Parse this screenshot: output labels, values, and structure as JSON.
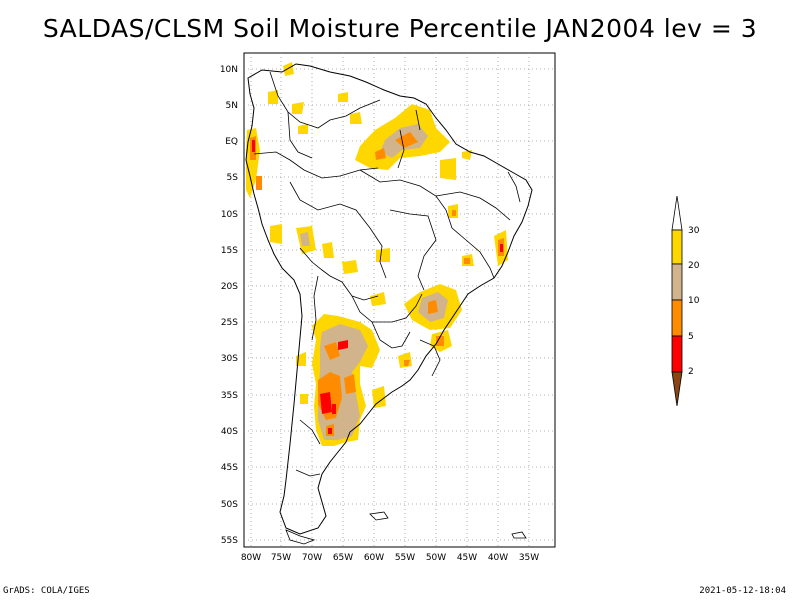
{
  "title": "SALDAS/CLSM Soil Moisture Percentile JAN2004 lev = 3",
  "map": {
    "lat_labels": [
      "10N",
      "5N",
      "EQ",
      "5S",
      "10S",
      "15S",
      "20S",
      "25S",
      "30S",
      "35S",
      "40S",
      "45S",
      "50S",
      "55S"
    ],
    "lon_labels": [
      "80W",
      "75W",
      "70W",
      "65W",
      "60W",
      "55W",
      "50W",
      "45W",
      "40W",
      "35W"
    ]
  },
  "colorbar": {
    "levels": [
      "2",
      "5",
      "10",
      "20",
      "30"
    ],
    "colors": [
      "#8B4513",
      "#ff0000",
      "#ff8c00",
      "#d2b48c",
      "#ffd700",
      "#ffffff"
    ]
  },
  "footer": {
    "left": "GrADS: COLA/IGES",
    "right": "2021-05-12-18:04"
  }
}
